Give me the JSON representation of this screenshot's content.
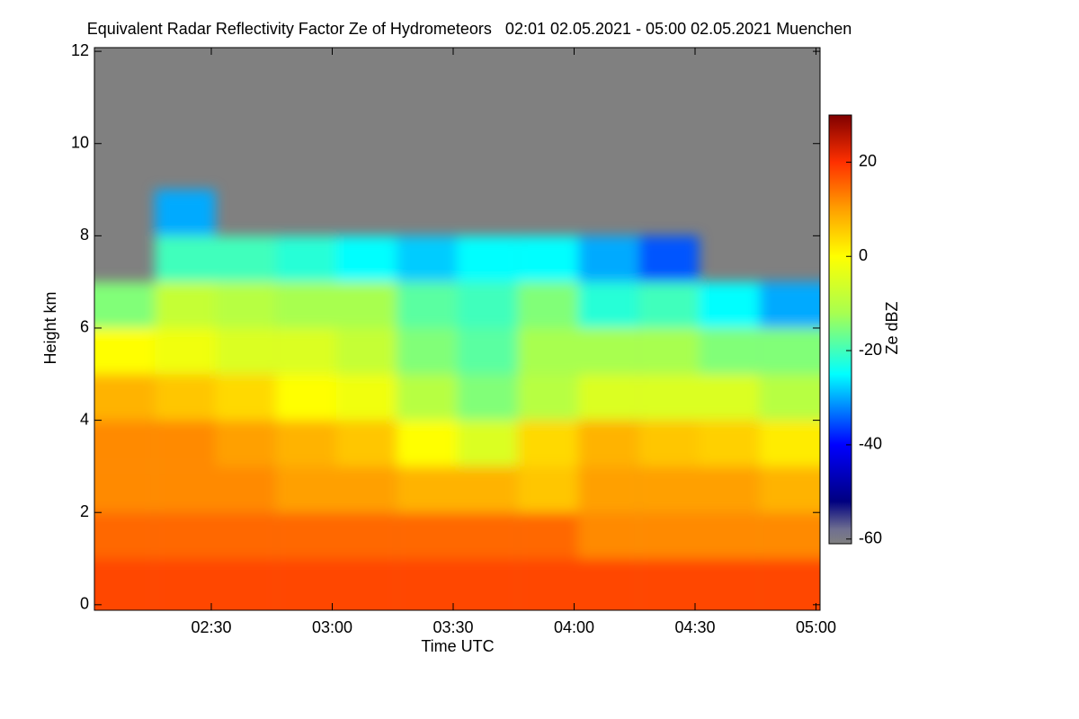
{
  "chart_data": {
    "type": "heatmap",
    "title": "Equivalent Radar Reflectivity Factor Ze of Hydrometeors   02:01 02.05.2021 - 05:00 02.05.2021 Muenchen",
    "x_label": "Time UTC",
    "y_label": "Height km",
    "colorbar_label": "Ze dBZ",
    "xlim": [
      2.0167,
      5.0167
    ],
    "xticks": [
      {
        "value": 2.5,
        "label": "02:30"
      },
      {
        "value": 3.0,
        "label": "03:00"
      },
      {
        "value": 3.5,
        "label": "03:30"
      },
      {
        "value": 4.0,
        "label": "04:00"
      },
      {
        "value": 4.5,
        "label": "04:30"
      },
      {
        "value": 5.0,
        "label": "05:00"
      }
    ],
    "ylim": [
      -0.12,
      12.08
    ],
    "yticks": [
      0,
      2,
      4,
      6,
      8,
      10,
      12
    ],
    "clim": [
      -61,
      30
    ],
    "cticks": [
      20,
      0,
      -20,
      -40,
      -60
    ],
    "no_data_color": "#808080",
    "colormap": [
      {
        "value": -61,
        "color": "#808080"
      },
      {
        "value": -58,
        "color": "#707090"
      },
      {
        "value": -52,
        "color": "#000080"
      },
      {
        "value": -40,
        "color": "#0000ff"
      },
      {
        "value": -25,
        "color": "#00ffff"
      },
      {
        "value": -12,
        "color": "#a8ff50"
      },
      {
        "value": 0,
        "color": "#ffff00"
      },
      {
        "value": 10,
        "color": "#ffa000"
      },
      {
        "value": 20,
        "color": "#ff3000"
      },
      {
        "value": 30,
        "color": "#800000"
      }
    ],
    "x_edges": [
      2.0167,
      2.2667,
      2.5167,
      2.7667,
      3.0167,
      3.2667,
      3.5167,
      3.7667,
      4.0167,
      4.2667,
      4.5167,
      4.7667,
      5.0167
    ],
    "y_edges": [
      0,
      1,
      2,
      3,
      4,
      5,
      6,
      7,
      8,
      9,
      10,
      11,
      12
    ],
    "z": [
      [
        18,
        18,
        18,
        18,
        18,
        18,
        18,
        18,
        18,
        18,
        18,
        18
      ],
      [
        15,
        15,
        15,
        15,
        15,
        15,
        15,
        15,
        12,
        12,
        12,
        12
      ],
      [
        12,
        12,
        12,
        10,
        10,
        8,
        8,
        6,
        10,
        10,
        10,
        8
      ],
      [
        12,
        12,
        10,
        8,
        6,
        0,
        -5,
        4,
        8,
        6,
        5,
        2
      ],
      [
        8,
        6,
        4,
        0,
        -2,
        -10,
        -15,
        -10,
        -5,
        -5,
        -5,
        -10
      ],
      [
        0,
        -2,
        -5,
        -5,
        -8,
        -15,
        -18,
        -12,
        -12,
        -12,
        -15,
        -15
      ],
      [
        -15,
        -8,
        -10,
        -12,
        -12,
        -18,
        -20,
        -15,
        -22,
        -20,
        -25,
        -30
      ],
      [
        null,
        -20,
        -20,
        -22,
        -25,
        -28,
        -25,
        -25,
        -30,
        -35,
        null,
        null
      ],
      [
        null,
        -30,
        null,
        null,
        null,
        null,
        null,
        null,
        null,
        null,
        null,
        null
      ],
      [
        null,
        null,
        null,
        null,
        null,
        null,
        null,
        null,
        null,
        null,
        null,
        null
      ],
      [
        null,
        null,
        null,
        null,
        null,
        null,
        null,
        null,
        null,
        null,
        null,
        null
      ],
      [
        null,
        null,
        null,
        null,
        null,
        null,
        null,
        null,
        null,
        null,
        null,
        null
      ]
    ]
  }
}
